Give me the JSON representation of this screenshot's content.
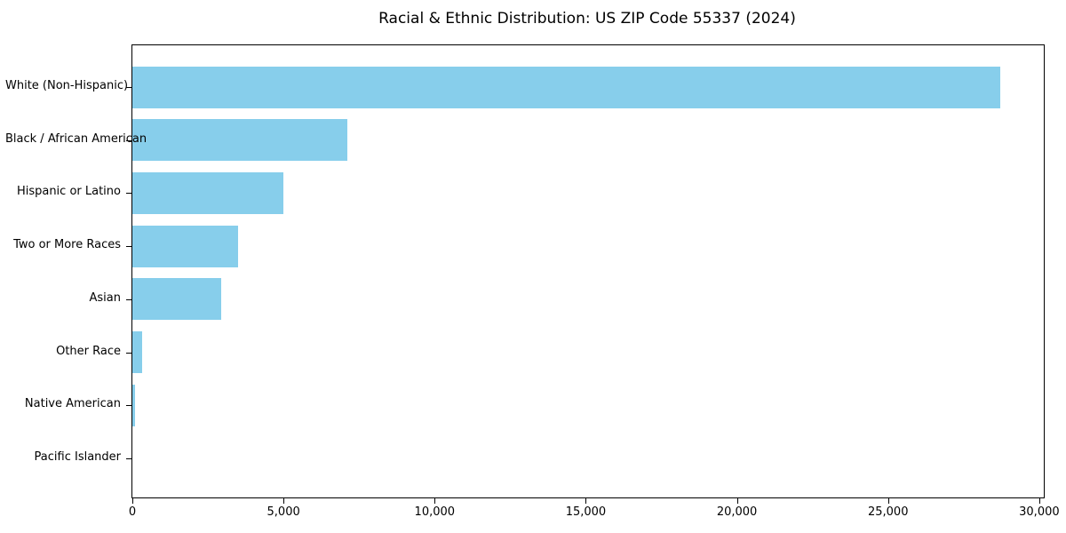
{
  "chart_data": {
    "type": "bar",
    "orientation": "horizontal",
    "title": "Racial & Ethnic Distribution: US ZIP Code 55337 (2024)",
    "categories": [
      "White (Non-Hispanic)",
      "Black / African American",
      "Hispanic or Latino",
      "Two or More Races",
      "Asian",
      "Other Race",
      "Native American",
      "Pacific Islander"
    ],
    "values": [
      28700,
      7100,
      5000,
      3500,
      2940,
      310,
      85,
      0
    ],
    "xlabel": "",
    "ylabel": "",
    "xlim": [
      0,
      30150
    ],
    "x_ticks": [
      {
        "value": 0,
        "label": "0"
      },
      {
        "value": 5000,
        "label": "5,000"
      },
      {
        "value": 10000,
        "label": "10,000"
      },
      {
        "value": 15000,
        "label": "15,000"
      },
      {
        "value": 20000,
        "label": "20,000"
      },
      {
        "value": 25000,
        "label": "25,000"
      },
      {
        "value": 30000,
        "label": "30,000"
      }
    ],
    "bar_color": "#87CEEB",
    "text_color": "#000000",
    "grid": false,
    "legend": "none"
  }
}
